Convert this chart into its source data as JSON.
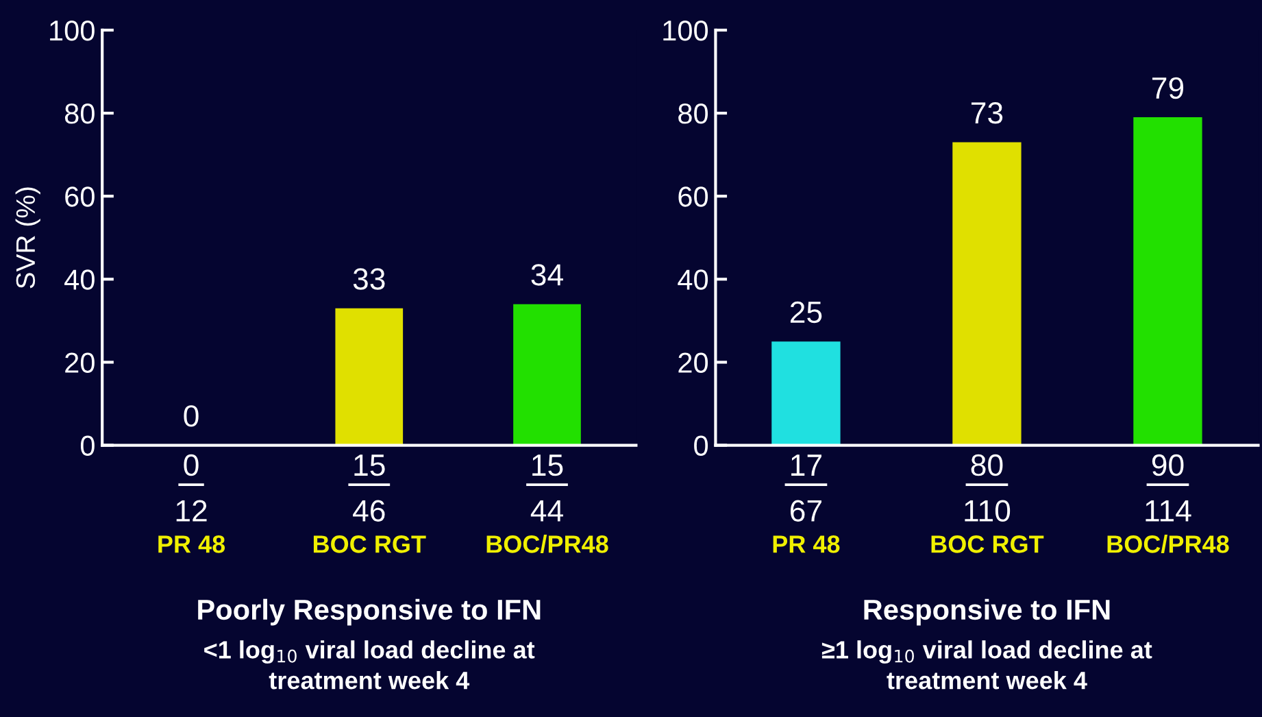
{
  "chart_data": [
    {
      "type": "bar",
      "title": "Poorly Responsive to IFN",
      "subtitle": "<1 log$_{10}$ viral load decline at\ntreatment week 4",
      "ylabel": "SVR (%)",
      "categories": [
        "PR 48",
        "BOC RGT",
        "BOC/PR48"
      ],
      "values": [
        0,
        33,
        34
      ],
      "colors": [
        "#e0e000",
        "#e0e000",
        "#22e000"
      ],
      "ylim": [
        0,
        100
      ],
      "yticks": [
        0,
        20,
        40,
        60,
        80,
        100
      ],
      "grid": false,
      "data_labels": true,
      "annotations": [
        "0",
        "12",
        "15",
        "46",
        "15",
        "44"
      ]
    },
    {
      "type": "bar",
      "title": "Responsive to IFN",
      "subtitle": "≥1 log$_{10}$ viral load decline at\ntreatment week 4",
      "categories": [
        "PR 48",
        "BOC RGT",
        "BOC/PR48"
      ],
      "values": [
        25,
        73,
        79
      ],
      "colors": [
        "#20e0e0",
        "#e0e000",
        "#22e000"
      ],
      "ylim": [
        0,
        100
      ],
      "yticks": [
        0,
        20,
        40,
        60,
        80,
        100
      ],
      "grid": false,
      "data_labels": true,
      "annotations": [
        "17",
        "67",
        "80",
        "110",
        "90",
        "114"
      ]
    }
  ]
}
